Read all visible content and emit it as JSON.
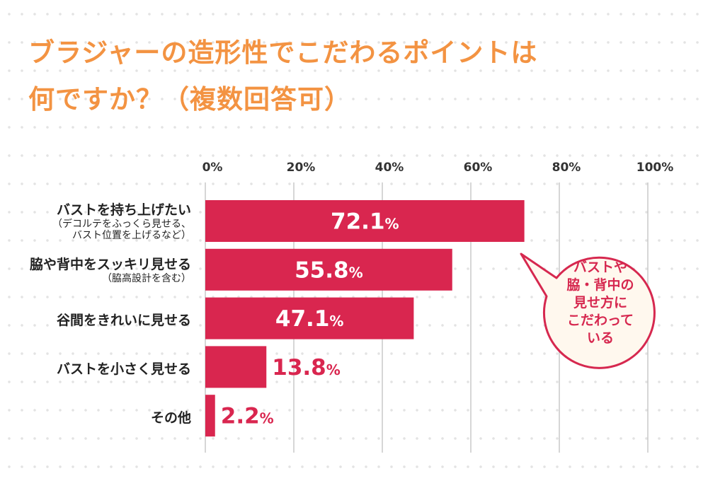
{
  "title_lines": [
    "ブラジャーの造形性でこだわるポイントは",
    "何ですか？（複数回答可）"
  ],
  "colors": {
    "bar": "#d9264f",
    "title": "#f39342",
    "grid": "#c8c8c8",
    "bubble_fill": "#fff8ee"
  },
  "chart_data": {
    "type": "bar",
    "orientation": "horizontal",
    "title": "ブラジャーの造形性でこだわるポイントは何ですか？（複数回答可）",
    "categories": [
      {
        "label": "バストを持ち上げたい",
        "sub": "（デコルテをふっくら見せる、\nバスト位置を上げるなど）"
      },
      {
        "label": "脇や背中をスッキリ見せる",
        "sub": "（脇高設計を含む）"
      },
      {
        "label": "谷間をきれいに見せる",
        "sub": ""
      },
      {
        "label": "バストを小さく見せる",
        "sub": ""
      },
      {
        "label": "その他",
        "sub": ""
      }
    ],
    "values": [
      72.1,
      55.8,
      47.1,
      13.8,
      2.2
    ],
    "value_labels": [
      "72.1",
      "55.8",
      "47.1",
      "13.8",
      "2.2"
    ],
    "unit": "%",
    "xlim": [
      0,
      100
    ],
    "xticks": [
      "0%",
      "20%",
      "40%",
      "60%",
      "80%",
      "100%"
    ],
    "xtick_values": [
      0,
      20,
      40,
      60,
      80,
      100
    ],
    "grid": true,
    "annotation": "バストや\n脇・背中の\n見せ方に\nこだわって\nいる"
  }
}
